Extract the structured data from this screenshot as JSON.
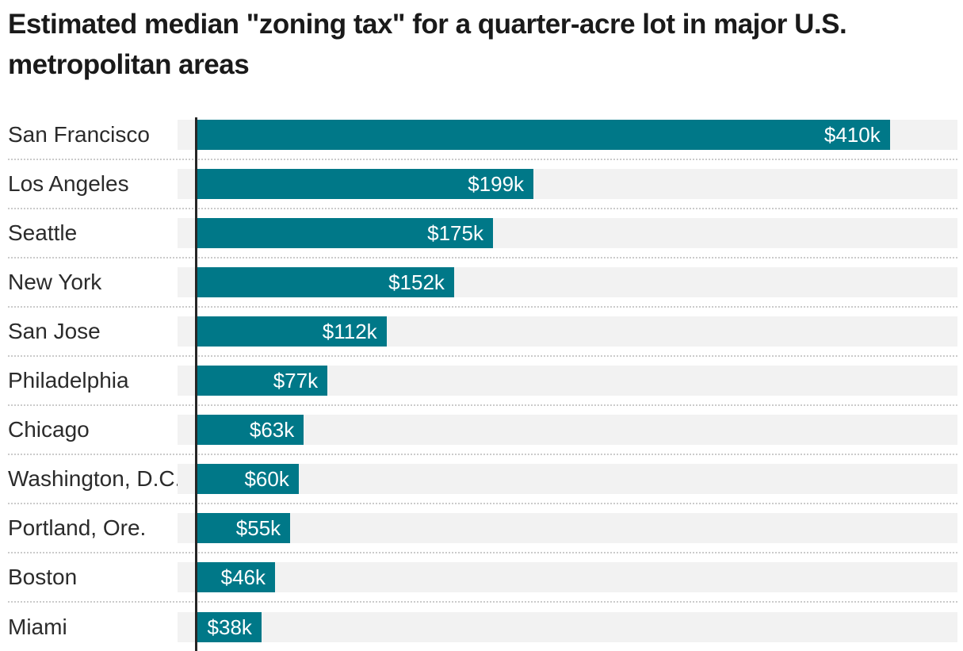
{
  "title": "Estimated median \"zoning tax\" for a quarter-acre lot in major U.S. metropolitan areas",
  "colors": {
    "background": "#ffffff",
    "bar": "#007888",
    "track": "#f2f2f2",
    "axis": "#262626",
    "separator": "#cbcbcb",
    "title_text": "#1a1a1a",
    "label_text": "#2b2b2b",
    "value_text": "#ffffff"
  },
  "chart_data": {
    "type": "bar",
    "orientation": "horizontal",
    "title": "Estimated median \"zoning tax\" for a quarter-acre lot in major U.S. metropolitan areas",
    "categories": [
      "San Francisco",
      "Los Angeles",
      "Seattle",
      "New York",
      "San Jose",
      "Philadelphia",
      "Chicago",
      "Washington, D.C.",
      "Portland, Ore.",
      "Boston",
      "Miami"
    ],
    "values": [
      410,
      199,
      175,
      152,
      112,
      77,
      63,
      60,
      55,
      46,
      38
    ],
    "value_labels": [
      "$410k",
      "$199k",
      "$175k",
      "$152k",
      "$112k",
      "$77k",
      "$63k",
      "$60k",
      "$55k",
      "$46k",
      "$38k"
    ],
    "unit": "thousands of US dollars",
    "xlim": [
      0,
      450
    ],
    "grid": false,
    "legend": "none",
    "value_label_position": "inside-end",
    "row_separator": "dotted",
    "baseline_axis": "left-vertical"
  }
}
